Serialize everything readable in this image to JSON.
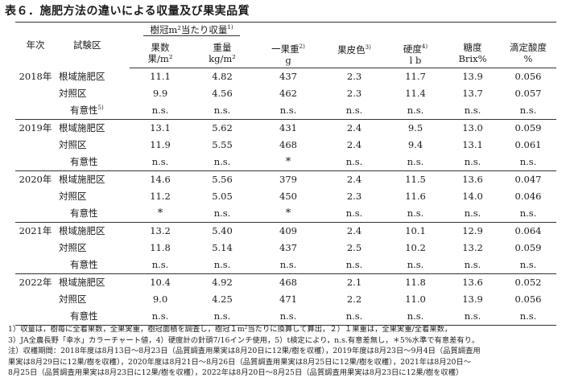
{
  "title": "表６．施肥方法の違いによる収量及び果実品質",
  "header": {
    "year": "年次",
    "trial": "試験区",
    "group": "樹冠m²当たり収量",
    "group_sup": "1)",
    "col_fruit_count": [
      "果数",
      "果/m²"
    ],
    "col_yield": [
      "重量",
      "kg/m²"
    ],
    "col_weight": [
      "一果重",
      "g"
    ],
    "col_weight_sup": "2)",
    "col_color": "果皮色",
    "col_color_sup": "3)",
    "col_hardness": [
      "硬度",
      "l b"
    ],
    "col_hardness_sup": "4)",
    "col_sugar": [
      "糖度",
      "Brix%"
    ],
    "col_acid": [
      "滴定酸度",
      "%"
    ]
  },
  "sig_label": "有意性",
  "sig_sup": "5)",
  "rows": [
    {
      "year": "2018年",
      "trial": "根域施肥区",
      "count": "11.1",
      "yield": "4.82",
      "weight": "437",
      "color": "2.3",
      "hardness": "11.7",
      "sugar": "13.9",
      "acid": "0.056"
    },
    {
      "year": "",
      "trial": "対照区",
      "count": "9.9",
      "yield": "4.56",
      "weight": "462",
      "color": "2.3",
      "hardness": "11.4",
      "sugar": "13.7",
      "acid": "0.057"
    },
    {
      "year": "",
      "trial": "有意性",
      "count": "n.s.",
      "yield": "n.s.",
      "weight": "n.s.",
      "color": "n.s.",
      "hardness": "n.s.",
      "sugar": "n.s.",
      "acid": "n.s."
    },
    {
      "year": "2019年",
      "trial": "根域施肥区",
      "count": "13.1",
      "yield": "5.62",
      "weight": "431",
      "color": "2.4",
      "hardness": "9.5",
      "sugar": "13.0",
      "acid": "0.059"
    },
    {
      "year": "",
      "trial": "対照区",
      "count": "11.9",
      "yield": "5.55",
      "weight": "468",
      "color": "2.4",
      "hardness": "9.4",
      "sugar": "13.1",
      "acid": "0.061"
    },
    {
      "year": "",
      "trial": "有意性",
      "count": "n.s.",
      "yield": "n.s.",
      "weight": "*",
      "color": "n.s.",
      "hardness": "n.s.",
      "sugar": "n.s.",
      "acid": "n.s."
    },
    {
      "year": "2020年",
      "trial": "根域施肥区",
      "count": "14.6",
      "yield": "5.56",
      "weight": "379",
      "color": "2.4",
      "hardness": "11.5",
      "sugar": "13.6",
      "acid": "0.047"
    },
    {
      "year": "",
      "trial": "対照区",
      "count": "11.2",
      "yield": "5.05",
      "weight": "450",
      "color": "2.3",
      "hardness": "11.6",
      "sugar": "14.0",
      "acid": "0.046"
    },
    {
      "year": "",
      "trial": "有意性",
      "count": "*",
      "yield": "n.s.",
      "weight": "*",
      "color": "n.s.",
      "hardness": "n.s.",
      "sugar": "n.s.",
      "acid": "n.s."
    },
    {
      "year": "2021年",
      "trial": "根域施肥区",
      "count": "13.2",
      "yield": "5.40",
      "weight": "409",
      "color": "2.4",
      "hardness": "10.1",
      "sugar": "12.9",
      "acid": "0.064"
    },
    {
      "year": "",
      "trial": "対照区",
      "count": "11.8",
      "yield": "5.14",
      "weight": "437",
      "color": "2.5",
      "hardness": "10.2",
      "sugar": "13.2",
      "acid": "0.059"
    },
    {
      "year": "",
      "trial": "有意性",
      "count": "n.s.",
      "yield": "n.s.",
      "weight": "n.s.",
      "color": "n.s.",
      "hardness": "n.s.",
      "sugar": "n.s.",
      "acid": "n.s."
    },
    {
      "year": "2022年",
      "trial": "根域施肥区",
      "count": "10.4",
      "yield": "4.92",
      "weight": "468",
      "color": "2.1",
      "hardness": "11.8",
      "sugar": "13.6",
      "acid": "0.052"
    },
    {
      "year": "",
      "trial": "対照区",
      "count": "9.0",
      "yield": "4.25",
      "weight": "471",
      "color": "2.2",
      "hardness": "11.0",
      "sugar": "13.9",
      "acid": "0.056"
    },
    {
      "year": "",
      "trial": "有意性",
      "count": "n.s.",
      "yield": "n.s.",
      "weight": "n.s.",
      "color": "n.s.",
      "hardness": "n.s.",
      "sugar": "n.s.",
      "acid": "n.s."
    }
  ],
  "notes": [
    "1）収量は，樹毎に全着果数，全果実重，樹冠面積を調査し，樹冠１m²当たりに換算して算出，２）１果重は，全果実重/全着果数，",
    "3）JA全農長野「幸水」カラーチャート値，4）硬度計の針頭7/16インチ使用，5）t検定により，n.s.有意差無し，＊5%水準で有意差有り。",
    "注）収穫期間：2018年度は8月13日～8月23日（品質調査用果実は8月20日に12果/樹を収穫），2019年度は8月23日～9月4日（品質調査用",
    "果実は8月29日に12果/樹を収穫），2020年度は8月21日～8月26日（品質調査用果実は8月25日に12果/樹を収穫），2021年は8月20日～",
    "8月25日（品質調査用果実は8月23日に12果/樹を収穫），2022年は8月20日～8月25日（品質調査用果実は8月23日に12果/樹を収穫）"
  ]
}
